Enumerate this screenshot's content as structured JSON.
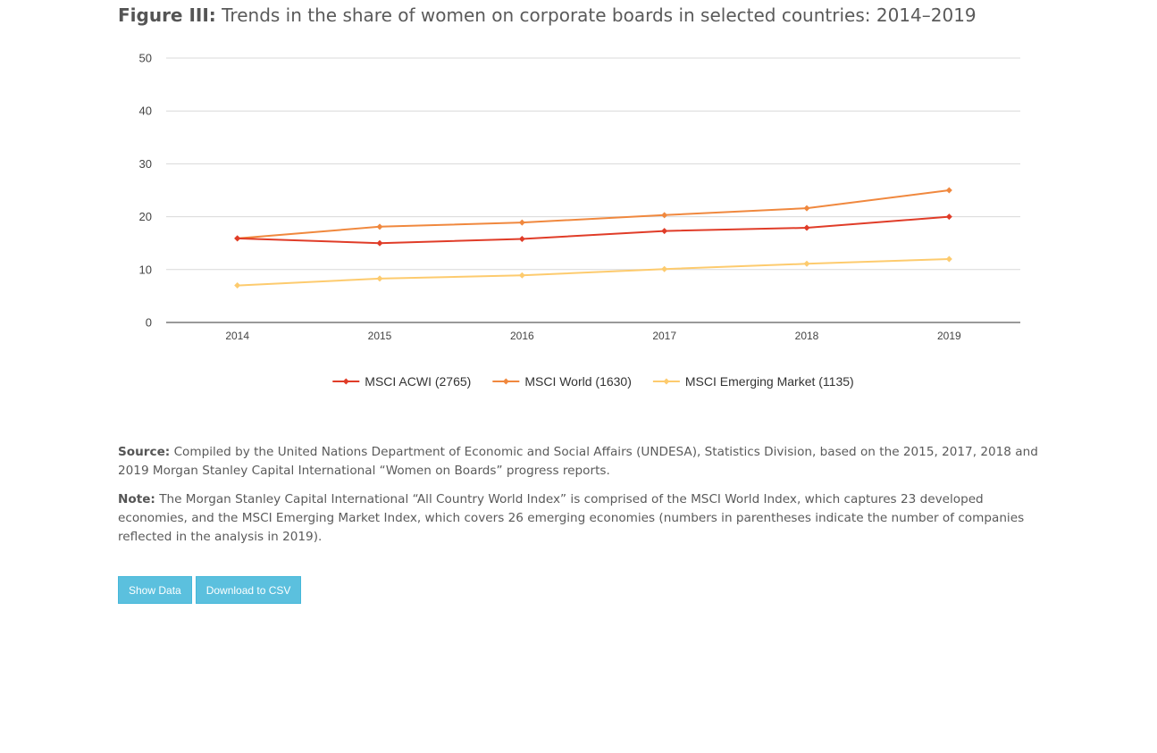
{
  "figure": {
    "label": "Figure III:",
    "title": "Trends in the share of women on corporate boards in selected countries: 2014–2019"
  },
  "chart_data": {
    "type": "line",
    "x": [
      "2014",
      "2015",
      "2016",
      "2017",
      "2018",
      "2019"
    ],
    "ylim": [
      0,
      50
    ],
    "yticks": [
      0,
      10,
      20,
      30,
      40,
      50
    ],
    "grid": true,
    "legend_position": "bottom",
    "xlabel": "",
    "ylabel": "",
    "series": [
      {
        "name": "MSCI ACWI (2765)",
        "color": "#e03c28",
        "values": [
          15.9,
          15.0,
          15.8,
          17.3,
          17.9,
          20.0
        ]
      },
      {
        "name": "MSCI World (1630)",
        "color": "#f0883e",
        "values": [
          15.9,
          18.1,
          18.9,
          20.3,
          21.6,
          25.0
        ]
      },
      {
        "name": "MSCI Emerging Market (1135)",
        "color": "#fdcb6e",
        "values": [
          7.0,
          8.3,
          8.9,
          10.1,
          11.1,
          12.0
        ]
      }
    ]
  },
  "source": {
    "label": "Source:",
    "text": "Compiled by the United Nations Department of Economic and Social Affairs (UNDESA), Statistics Division, based on the 2015, 2017, 2018 and 2019 Morgan Stanley Capital International “Women on Boards” progress reports."
  },
  "note": {
    "label": "Note:",
    "text": "The Morgan Stanley Capital International “All Country World Index” is comprised of the MSCI World Index, which captures 23 developed economies, and the MSCI Emerging Market Index, which covers 26 emerging economies (numbers in parentheses indicate the number of companies reflected in the analysis in 2019)."
  },
  "buttons": {
    "show_data": "Show Data",
    "download_csv": "Download to CSV"
  },
  "colors": {
    "button_bg": "#5bc0de",
    "grid": "#d9d9d9",
    "axis": "#333333"
  }
}
